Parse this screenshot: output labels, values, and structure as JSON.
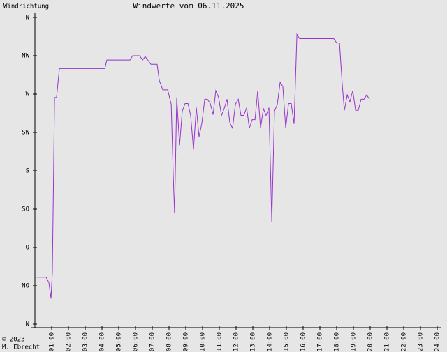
{
  "chart_data": {
    "type": "line",
    "title": "Windwerte vom 06.11.2025",
    "y_label": "Windrichtung",
    "copyright": "© 2023",
    "author": "M. Ebrecht",
    "xlim": [
      0,
      24
    ],
    "xticks": [
      {
        "value": 1,
        "label": "01:00"
      },
      {
        "value": 2,
        "label": "02:00"
      },
      {
        "value": 3,
        "label": "03:00"
      },
      {
        "value": 4,
        "label": "04:00"
      },
      {
        "value": 5,
        "label": "05:00"
      },
      {
        "value": 6,
        "label": "06:00"
      },
      {
        "value": 7,
        "label": "07:00"
      },
      {
        "value": 8,
        "label": "08:00"
      },
      {
        "value": 9,
        "label": "09:00"
      },
      {
        "value": 10,
        "label": "10:00"
      },
      {
        "value": 11,
        "label": "11:00"
      },
      {
        "value": 12,
        "label": "12:00"
      },
      {
        "value": 13,
        "label": "13:00"
      },
      {
        "value": 14,
        "label": "14:00"
      },
      {
        "value": 15,
        "label": "15:00"
      },
      {
        "value": 16,
        "label": "16:00"
      },
      {
        "value": 17,
        "label": "17:00"
      },
      {
        "value": 18,
        "label": "18:00"
      },
      {
        "value": 19,
        "label": "19:00"
      },
      {
        "value": 20,
        "label": "20:00"
      },
      {
        "value": 21,
        "label": "21:00"
      },
      {
        "value": 22,
        "label": "22:00"
      },
      {
        "value": 23,
        "label": "23:00"
      },
      {
        "value": 24,
        "label": "24:00"
      }
    ],
    "ylim": [
      0,
      360
    ],
    "yticks": [
      {
        "value": 0,
        "label": "N"
      },
      {
        "value": 45,
        "label": "NO"
      },
      {
        "value": 90,
        "label": "O"
      },
      {
        "value": 135,
        "label": "SO"
      },
      {
        "value": 180,
        "label": "S"
      },
      {
        "value": 225,
        "label": "SW"
      },
      {
        "value": 270,
        "label": "W"
      },
      {
        "value": 315,
        "label": "NW"
      },
      {
        "value": 360,
        "label": "N"
      }
    ],
    "x": [
      0,
      0.67,
      0.83,
      0.96,
      1.04,
      1.17,
      1.29,
      1.46,
      4.17,
      4.29,
      5.67,
      5.83,
      6.25,
      6.42,
      6.58,
      6.92,
      7.29,
      7.42,
      7.63,
      7.92,
      8.13,
      8.25,
      8.33,
      8.46,
      8.63,
      8.79,
      8.96,
      9.13,
      9.29,
      9.46,
      9.63,
      9.79,
      9.96,
      10.13,
      10.29,
      10.46,
      10.63,
      10.79,
      10.96,
      11.13,
      11.29,
      11.46,
      11.63,
      11.79,
      11.96,
      12.13,
      12.29,
      12.46,
      12.63,
      12.79,
      12.96,
      13.13,
      13.29,
      13.46,
      13.63,
      13.79,
      13.96,
      14.13,
      14.29,
      14.46,
      14.63,
      14.79,
      14.96,
      15.13,
      15.29,
      15.46,
      15.63,
      15.79,
      17.83,
      18,
      18.17,
      18.33,
      18.46,
      18.63,
      18.79,
      18.96,
      19.13,
      19.29,
      19.46,
      19.63,
      19.79,
      19.96
    ],
    "series": [
      {
        "color": "#9933cc",
        "values": [
          55,
          55,
          49,
          30,
          61,
          266,
          266,
          300,
          300,
          310,
          310,
          315,
          315,
          310,
          314,
          305,
          305,
          286,
          275,
          275,
          258,
          176,
          130,
          266,
          210,
          250,
          259,
          259,
          245,
          205,
          254,
          220,
          236,
          264,
          264,
          259,
          246,
          274,
          266,
          245,
          253,
          264,
          236,
          230,
          258,
          264,
          245,
          245,
          254,
          230,
          240,
          240,
          274,
          230,
          253,
          245,
          254,
          120,
          250,
          258,
          284,
          279,
          230,
          259,
          259,
          235,
          340,
          335,
          335,
          330,
          330,
          282,
          251,
          269,
          261,
          274,
          251,
          251,
          264,
          264,
          269,
          264
        ]
      }
    ]
  }
}
